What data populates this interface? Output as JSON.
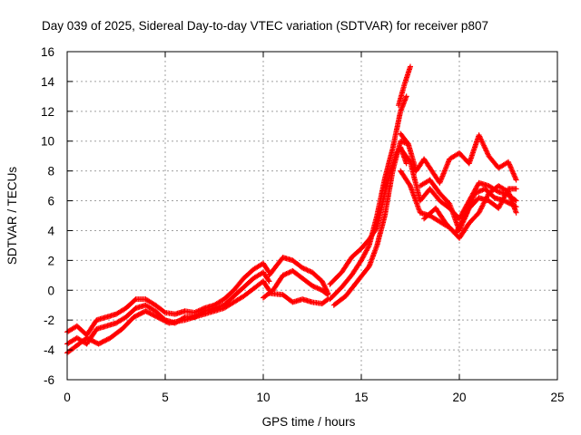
{
  "chart_data": {
    "type": "scatter",
    "title": "Day 039 of 2025, Sidereal Day-to-day VTEC variation (SDTVAR) for receiver p807",
    "xlabel": "GPS time / hours",
    "ylabel": "SDTVAR / TECUs",
    "xlim": [
      0,
      25
    ],
    "ylim": [
      -6,
      16
    ],
    "xticks": [
      0,
      5,
      10,
      15,
      20,
      25
    ],
    "yticks": [
      -6,
      -4,
      -2,
      0,
      2,
      4,
      6,
      8,
      10,
      12,
      14,
      16
    ],
    "grid": true,
    "marker": "+",
    "color": "#ff0000",
    "series": [
      {
        "tracks": [
          [
            [
              0.0,
              -2.8
            ],
            [
              0.5,
              -2.4
            ],
            [
              1.0,
              -3.0
            ],
            [
              1.5,
              -2.0
            ],
            [
              2.0,
              -1.8
            ],
            [
              2.5,
              -1.6
            ],
            [
              3.0,
              -1.2
            ],
            [
              3.5,
              -0.6
            ],
            [
              4.0,
              -0.6
            ],
            [
              4.5,
              -1.0
            ],
            [
              5.0,
              -1.5
            ],
            [
              5.5,
              -1.6
            ],
            [
              6.0,
              -1.4
            ],
            [
              6.5,
              -1.5
            ],
            [
              7.0,
              -1.2
            ],
            [
              7.5,
              -1.0
            ],
            [
              8.0,
              -0.6
            ],
            [
              8.5,
              0.0
            ],
            [
              9.0,
              0.8
            ],
            [
              9.5,
              1.4
            ],
            [
              10.0,
              1.8
            ],
            [
              10.3,
              1.2
            ]
          ],
          [
            [
              0.0,
              -3.6
            ],
            [
              0.5,
              -3.2
            ],
            [
              1.0,
              -3.6
            ],
            [
              1.5,
              -2.6
            ],
            [
              2.0,
              -2.4
            ],
            [
              2.5,
              -2.2
            ],
            [
              3.0,
              -1.8
            ],
            [
              3.5,
              -1.2
            ],
            [
              4.0,
              -1.0
            ],
            [
              4.5,
              -1.4
            ],
            [
              5.0,
              -2.0
            ],
            [
              5.5,
              -2.2
            ],
            [
              6.0,
              -1.8
            ],
            [
              6.5,
              -1.8
            ],
            [
              7.0,
              -1.4
            ],
            [
              7.5,
              -1.2
            ],
            [
              8.0,
              -1.0
            ],
            [
              8.5,
              -0.4
            ],
            [
              9.0,
              0.2
            ],
            [
              9.5,
              0.8
            ],
            [
              10.0,
              1.2
            ],
            [
              10.3,
              0.6
            ]
          ],
          [
            [
              0.0,
              -4.2
            ],
            [
              0.4,
              -3.8
            ],
            [
              1.0,
              -3.2
            ],
            [
              1.6,
              -3.6
            ],
            [
              2.2,
              -3.2
            ],
            [
              2.8,
              -2.6
            ],
            [
              3.4,
              -1.8
            ],
            [
              4.0,
              -1.4
            ],
            [
              4.6,
              -1.8
            ],
            [
              5.2,
              -2.2
            ],
            [
              6.0,
              -2.0
            ],
            [
              7.0,
              -1.6
            ],
            [
              8.0,
              -1.2
            ],
            [
              9.0,
              -0.4
            ],
            [
              10.0,
              0.6
            ],
            [
              10.3,
              0.0
            ]
          ],
          [
            [
              10.3,
              1.0
            ],
            [
              11.0,
              2.2
            ],
            [
              11.5,
              2.0
            ],
            [
              12.0,
              1.5
            ],
            [
              12.5,
              1.2
            ],
            [
              13.0,
              0.6
            ],
            [
              13.3,
              -0.2
            ]
          ],
          [
            [
              10.3,
              -0.2
            ],
            [
              11.0,
              -0.3
            ],
            [
              11.5,
              -0.8
            ],
            [
              12.0,
              -0.6
            ],
            [
              12.5,
              -0.8
            ],
            [
              13.0,
              -0.9
            ],
            [
              13.3,
              -0.6
            ]
          ],
          [
            [
              10.0,
              -0.5
            ],
            [
              10.5,
              0.0
            ],
            [
              11.0,
              1.0
            ],
            [
              11.5,
              1.3
            ],
            [
              12.0,
              0.8
            ],
            [
              12.5,
              0.3
            ],
            [
              13.0,
              0.0
            ],
            [
              13.3,
              -0.3
            ]
          ],
          [
            [
              13.4,
              0.4
            ],
            [
              14.0,
              1.2
            ],
            [
              14.5,
              2.2
            ],
            [
              15.0,
              2.8
            ],
            [
              15.4,
              3.4
            ],
            [
              15.8,
              4.2
            ],
            [
              16.2,
              6.5
            ],
            [
              16.5,
              8.0
            ],
            [
              16.8,
              9.2
            ],
            [
              17.0,
              9.6
            ],
            [
              17.3,
              8.5
            ]
          ],
          [
            [
              13.4,
              -0.6
            ],
            [
              14.0,
              0.2
            ],
            [
              14.5,
              1.0
            ],
            [
              15.0,
              2.0
            ],
            [
              15.4,
              3.0
            ],
            [
              15.8,
              5.0
            ],
            [
              16.2,
              7.5
            ],
            [
              16.6,
              9.5
            ],
            [
              17.0,
              12.0
            ],
            [
              17.3,
              13.0
            ]
          ],
          [
            [
              13.6,
              -1.0
            ],
            [
              14.2,
              -0.4
            ],
            [
              14.8,
              0.6
            ],
            [
              15.4,
              1.6
            ],
            [
              15.8,
              3.0
            ],
            [
              16.2,
              5.0
            ],
            [
              16.6,
              8.0
            ],
            [
              17.0,
              10.0
            ],
            [
              17.4,
              9.8
            ]
          ],
          [
            [
              16.9,
              12.4
            ],
            [
              17.2,
              13.8
            ],
            [
              17.5,
              15.0
            ]
          ],
          [
            [
              17.0,
              8.0
            ],
            [
              17.5,
              7.0
            ],
            [
              18.0,
              5.2
            ],
            [
              18.5,
              5.0
            ],
            [
              19.0,
              4.6
            ],
            [
              19.5,
              4.2
            ],
            [
              20.0,
              3.5
            ],
            [
              20.5,
              4.5
            ],
            [
              21.0,
              5.2
            ],
            [
              21.5,
              6.5
            ],
            [
              22.0,
              7.0
            ],
            [
              22.5,
              6.6
            ],
            [
              22.9,
              5.2
            ]
          ],
          [
            [
              17.0,
              9.5
            ],
            [
              17.5,
              8.6
            ],
            [
              18.0,
              6.0
            ],
            [
              18.5,
              6.8
            ],
            [
              19.0,
              6.0
            ],
            [
              19.5,
              5.5
            ],
            [
              20.0,
              4.8
            ],
            [
              20.5,
              6.0
            ],
            [
              21.0,
              7.2
            ],
            [
              21.5,
              7.0
            ],
            [
              22.0,
              6.6
            ],
            [
              22.5,
              6.4
            ],
            [
              22.9,
              6.0
            ]
          ],
          [
            [
              17.0,
              10.5
            ],
            [
              17.4,
              9.8
            ],
            [
              17.8,
              8.0
            ],
            [
              18.2,
              8.8
            ],
            [
              18.6,
              8.0
            ],
            [
              19.0,
              7.2
            ],
            [
              19.5,
              8.8
            ],
            [
              20.0,
              9.2
            ],
            [
              20.5,
              8.5
            ],
            [
              21.0,
              10.4
            ],
            [
              21.5,
              9.0
            ],
            [
              22.0,
              8.2
            ],
            [
              22.5,
              8.6
            ],
            [
              22.9,
              7.4
            ]
          ],
          [
            [
              18.0,
              7.0
            ],
            [
              18.5,
              7.4
            ],
            [
              19.0,
              6.5
            ],
            [
              19.5,
              5.8
            ],
            [
              20.0,
              4.0
            ],
            [
              20.5,
              5.5
            ],
            [
              21.0,
              6.2
            ],
            [
              21.5,
              6.0
            ],
            [
              22.0,
              5.5
            ],
            [
              22.5,
              6.8
            ],
            [
              22.9,
              6.8
            ]
          ],
          [
            [
              18.2,
              4.8
            ],
            [
              18.8,
              5.5
            ],
            [
              19.3,
              4.5
            ],
            [
              19.8,
              3.8
            ],
            [
              20.3,
              5.0
            ],
            [
              20.8,
              6.5
            ],
            [
              21.3,
              6.8
            ],
            [
              21.8,
              6.2
            ],
            [
              22.3,
              6.0
            ],
            [
              22.9,
              5.6
            ]
          ]
        ]
      }
    ]
  }
}
